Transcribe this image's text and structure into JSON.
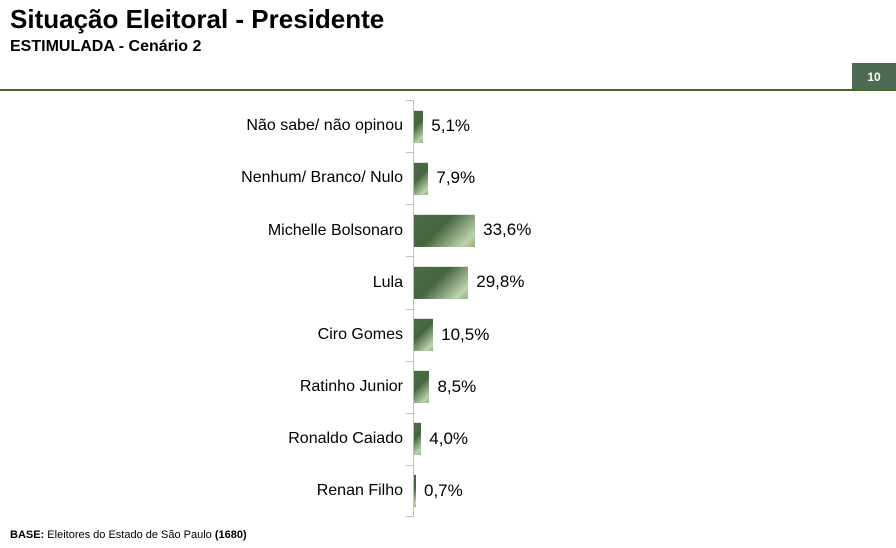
{
  "header": {
    "title": "Situação Eleitoral - Presidente",
    "subtitle": "ESTIMULADA - Cenário 2",
    "page_number": "10"
  },
  "footer": {
    "base_label": "BASE:",
    "base_text": "Eleitores do Estado de São Paulo",
    "base_count": "(1680)"
  },
  "colors": {
    "bar_dark": "#4b6c45",
    "bar_light": "#bdd2ad",
    "accent_line": "#46682d",
    "badge_bg": "#4d6b52",
    "axis": "#b7bfc7"
  },
  "chart_data": {
    "type": "bar",
    "orientation": "horizontal",
    "title": "Situação Eleitoral - Presidente — ESTIMULADA - Cenário 2",
    "categories": [
      "Não sabe/ não opinou",
      "Nenhum/ Branco/ Nulo",
      "Michelle Bolsonaro",
      "Lula",
      "Ciro Gomes",
      "Ratinho Junior",
      "Ronaldo Caiado",
      "Renan Filho"
    ],
    "values": [
      5.1,
      7.9,
      33.6,
      29.8,
      10.5,
      8.5,
      4.0,
      0.7
    ],
    "value_labels": [
      "5,1%",
      "7,9%",
      "33,6%",
      "29,8%",
      "10,5%",
      "8,5%",
      "4,0%",
      "0,7%"
    ],
    "unit": "%",
    "grid": false,
    "legend": false,
    "value_label_position": "outside-end"
  }
}
